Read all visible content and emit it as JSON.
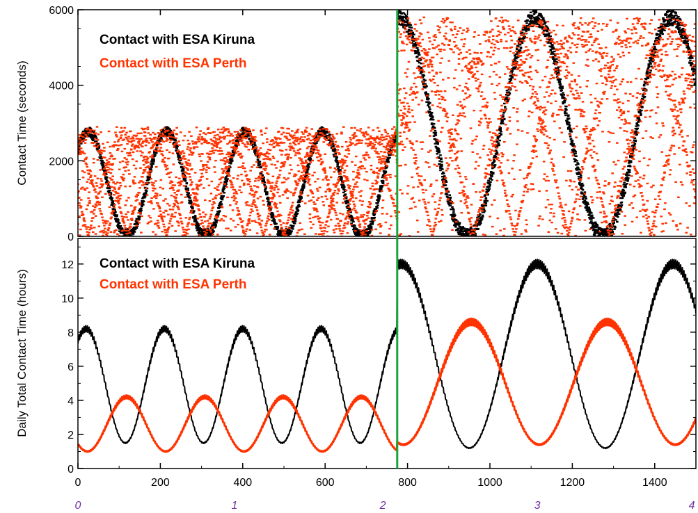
{
  "chart_data": [
    {
      "type": "scatter",
      "title": "",
      "ylabel": "Contact Time  (seconds)",
      "xlim": [
        0,
        1500
      ],
      "ylim": [
        0,
        6000
      ],
      "yticks": [
        0,
        2000,
        4000,
        6000
      ],
      "series": [
        {
          "name": "Contact with ESA Kiruna",
          "color": "#000000",
          "envelope": {
            "phase1": {
              "x_range": [
                0,
                775
              ],
              "min": 100,
              "max": 2900,
              "period": 190,
              "phase": 25
            },
            "phase2": {
              "x_range": [
                775,
                1500
              ],
              "min": 200,
              "max": 6000,
              "period": 330,
              "phase": 780
            }
          }
        },
        {
          "name": "Contact with ESA Perth",
          "color": "#ff3300",
          "envelope": {
            "phase1": {
              "x_range": [
                0,
                775
              ],
              "min": 0,
              "max": 2900,
              "period_pattern": 95
            },
            "phase2": {
              "x_range": [
                775,
                1500
              ],
              "min": 0,
              "max": 5800,
              "period_pattern": 110
            }
          }
        }
      ],
      "marker_line_x": 775
    },
    {
      "type": "line",
      "title": "",
      "ylabel": "Daily Total Contact Time  (hours)",
      "xlim": [
        0,
        1500
      ],
      "ylim": [
        0,
        13.5
      ],
      "yticks": [
        0,
        2,
        4,
        6,
        8,
        10,
        12
      ],
      "xticks": [
        0,
        200,
        400,
        600,
        800,
        1000,
        1200,
        1400
      ],
      "year_labels": [
        {
          "x": 0,
          "label": "0"
        },
        {
          "x": 380,
          "label": "1"
        },
        {
          "x": 740,
          "label": "2"
        },
        {
          "x": 1115,
          "label": "3"
        },
        {
          "x": 1490,
          "label": "4"
        }
      ],
      "series": [
        {
          "name": "Contact with ESA Kiruna",
          "color": "#000000",
          "phase1": {
            "x_range": [
              0,
              775
            ],
            "min": 1.5,
            "max": 8.2,
            "period": 190,
            "peak_x": 20
          },
          "phase2": {
            "x_range": [
              775,
              1500
            ],
            "min": 1.2,
            "max": 12.0,
            "period": 330,
            "peak_x": 785
          }
        },
        {
          "name": "Contact with ESA Perth",
          "color": "#ff3300",
          "phase1": {
            "x_range": [
              0,
              775
            ],
            "min": 1.0,
            "max": 4.2,
            "period": 190,
            "peak_x": 118
          },
          "phase2": {
            "x_range": [
              775,
              1500
            ],
            "min": 1.4,
            "max": 8.6,
            "period": 330,
            "peak_x": 955
          }
        }
      ],
      "marker_line_x": 775
    }
  ],
  "legend": {
    "top": [
      {
        "label": "Contact with ESA Kiruna",
        "color": "#000000"
      },
      {
        "label": "Contact with ESA Perth",
        "color": "#ff3300"
      }
    ],
    "bottom": [
      {
        "label": "Contact with ESA Kiruna",
        "color": "#000000"
      },
      {
        "label": "Contact with ESA Perth",
        "color": "#ff3300"
      }
    ]
  },
  "colors": {
    "kiruna": "#000000",
    "perth": "#ff3300",
    "marker_line": "#1aa33a",
    "year_labels": "#7030a0"
  }
}
